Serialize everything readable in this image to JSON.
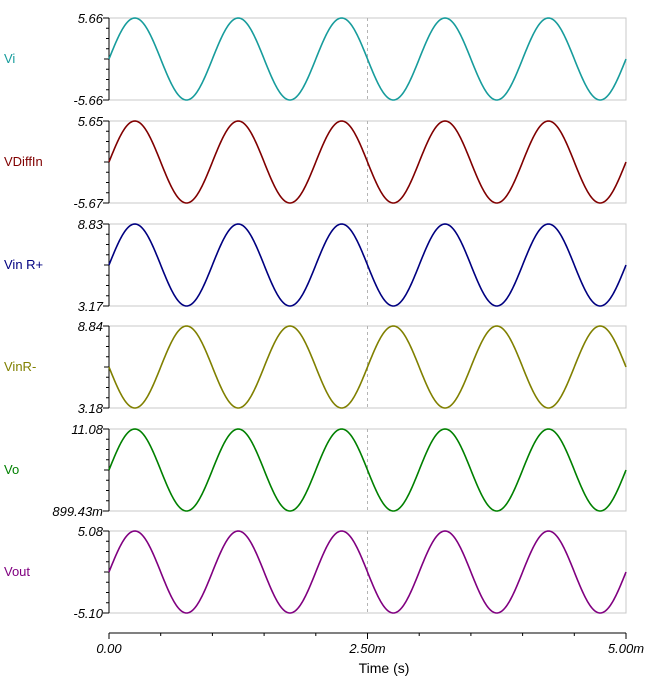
{
  "chart_data": {
    "type": "line",
    "xlabel": "Time (s)",
    "xlim": [
      0,
      0.005
    ],
    "x_ticks": [
      {
        "value": 0,
        "label": "0.00"
      },
      {
        "value": 0.0025,
        "label": "2.50m"
      },
      {
        "value": 0.005,
        "label": "5.00m"
      }
    ],
    "cursor_x": 0.0025,
    "grid": false,
    "frequency_hz": 1000,
    "series": [
      {
        "name": "Vi",
        "color": "#179c9c",
        "ylim": [
          -5.66,
          5.66
        ],
        "y_top_label": "5.66",
        "y_bottom_label": "-5.66",
        "amplitude": 5.66,
        "offset": 0,
        "phase_deg": 0
      },
      {
        "name": "VDiffIn",
        "color": "#800000",
        "ylim": [
          -5.67,
          5.65
        ],
        "y_top_label": "5.65",
        "y_bottom_label": "-5.67",
        "amplitude": 5.66,
        "offset": -0.01,
        "phase_deg": 0
      },
      {
        "name": "Vin R+",
        "color": "#000080",
        "ylim": [
          3.17,
          8.83
        ],
        "y_top_label": "8.83",
        "y_bottom_label": "3.17",
        "amplitude": 2.83,
        "offset": 6.0,
        "phase_deg": 0
      },
      {
        "name": "VinR-",
        "color": "#808000",
        "ylim": [
          3.18,
          8.84
        ],
        "y_top_label": "8.84",
        "y_bottom_label": "3.18",
        "amplitude": 2.83,
        "offset": 6.01,
        "phase_deg": 180
      },
      {
        "name": "Vo",
        "color": "#008000",
        "ylim": [
          0.89943,
          11.08
        ],
        "y_top_label": "11.08",
        "y_bottom_label": "899.43m",
        "amplitude": 5.09,
        "offset": 5.99,
        "phase_deg": 0
      },
      {
        "name": "Vout",
        "color": "#800080",
        "ylim": [
          -5.1,
          5.08
        ],
        "y_top_label": "5.08",
        "y_bottom_label": "-5.10",
        "amplitude": 5.09,
        "offset": -0.01,
        "phase_deg": 0
      }
    ]
  }
}
